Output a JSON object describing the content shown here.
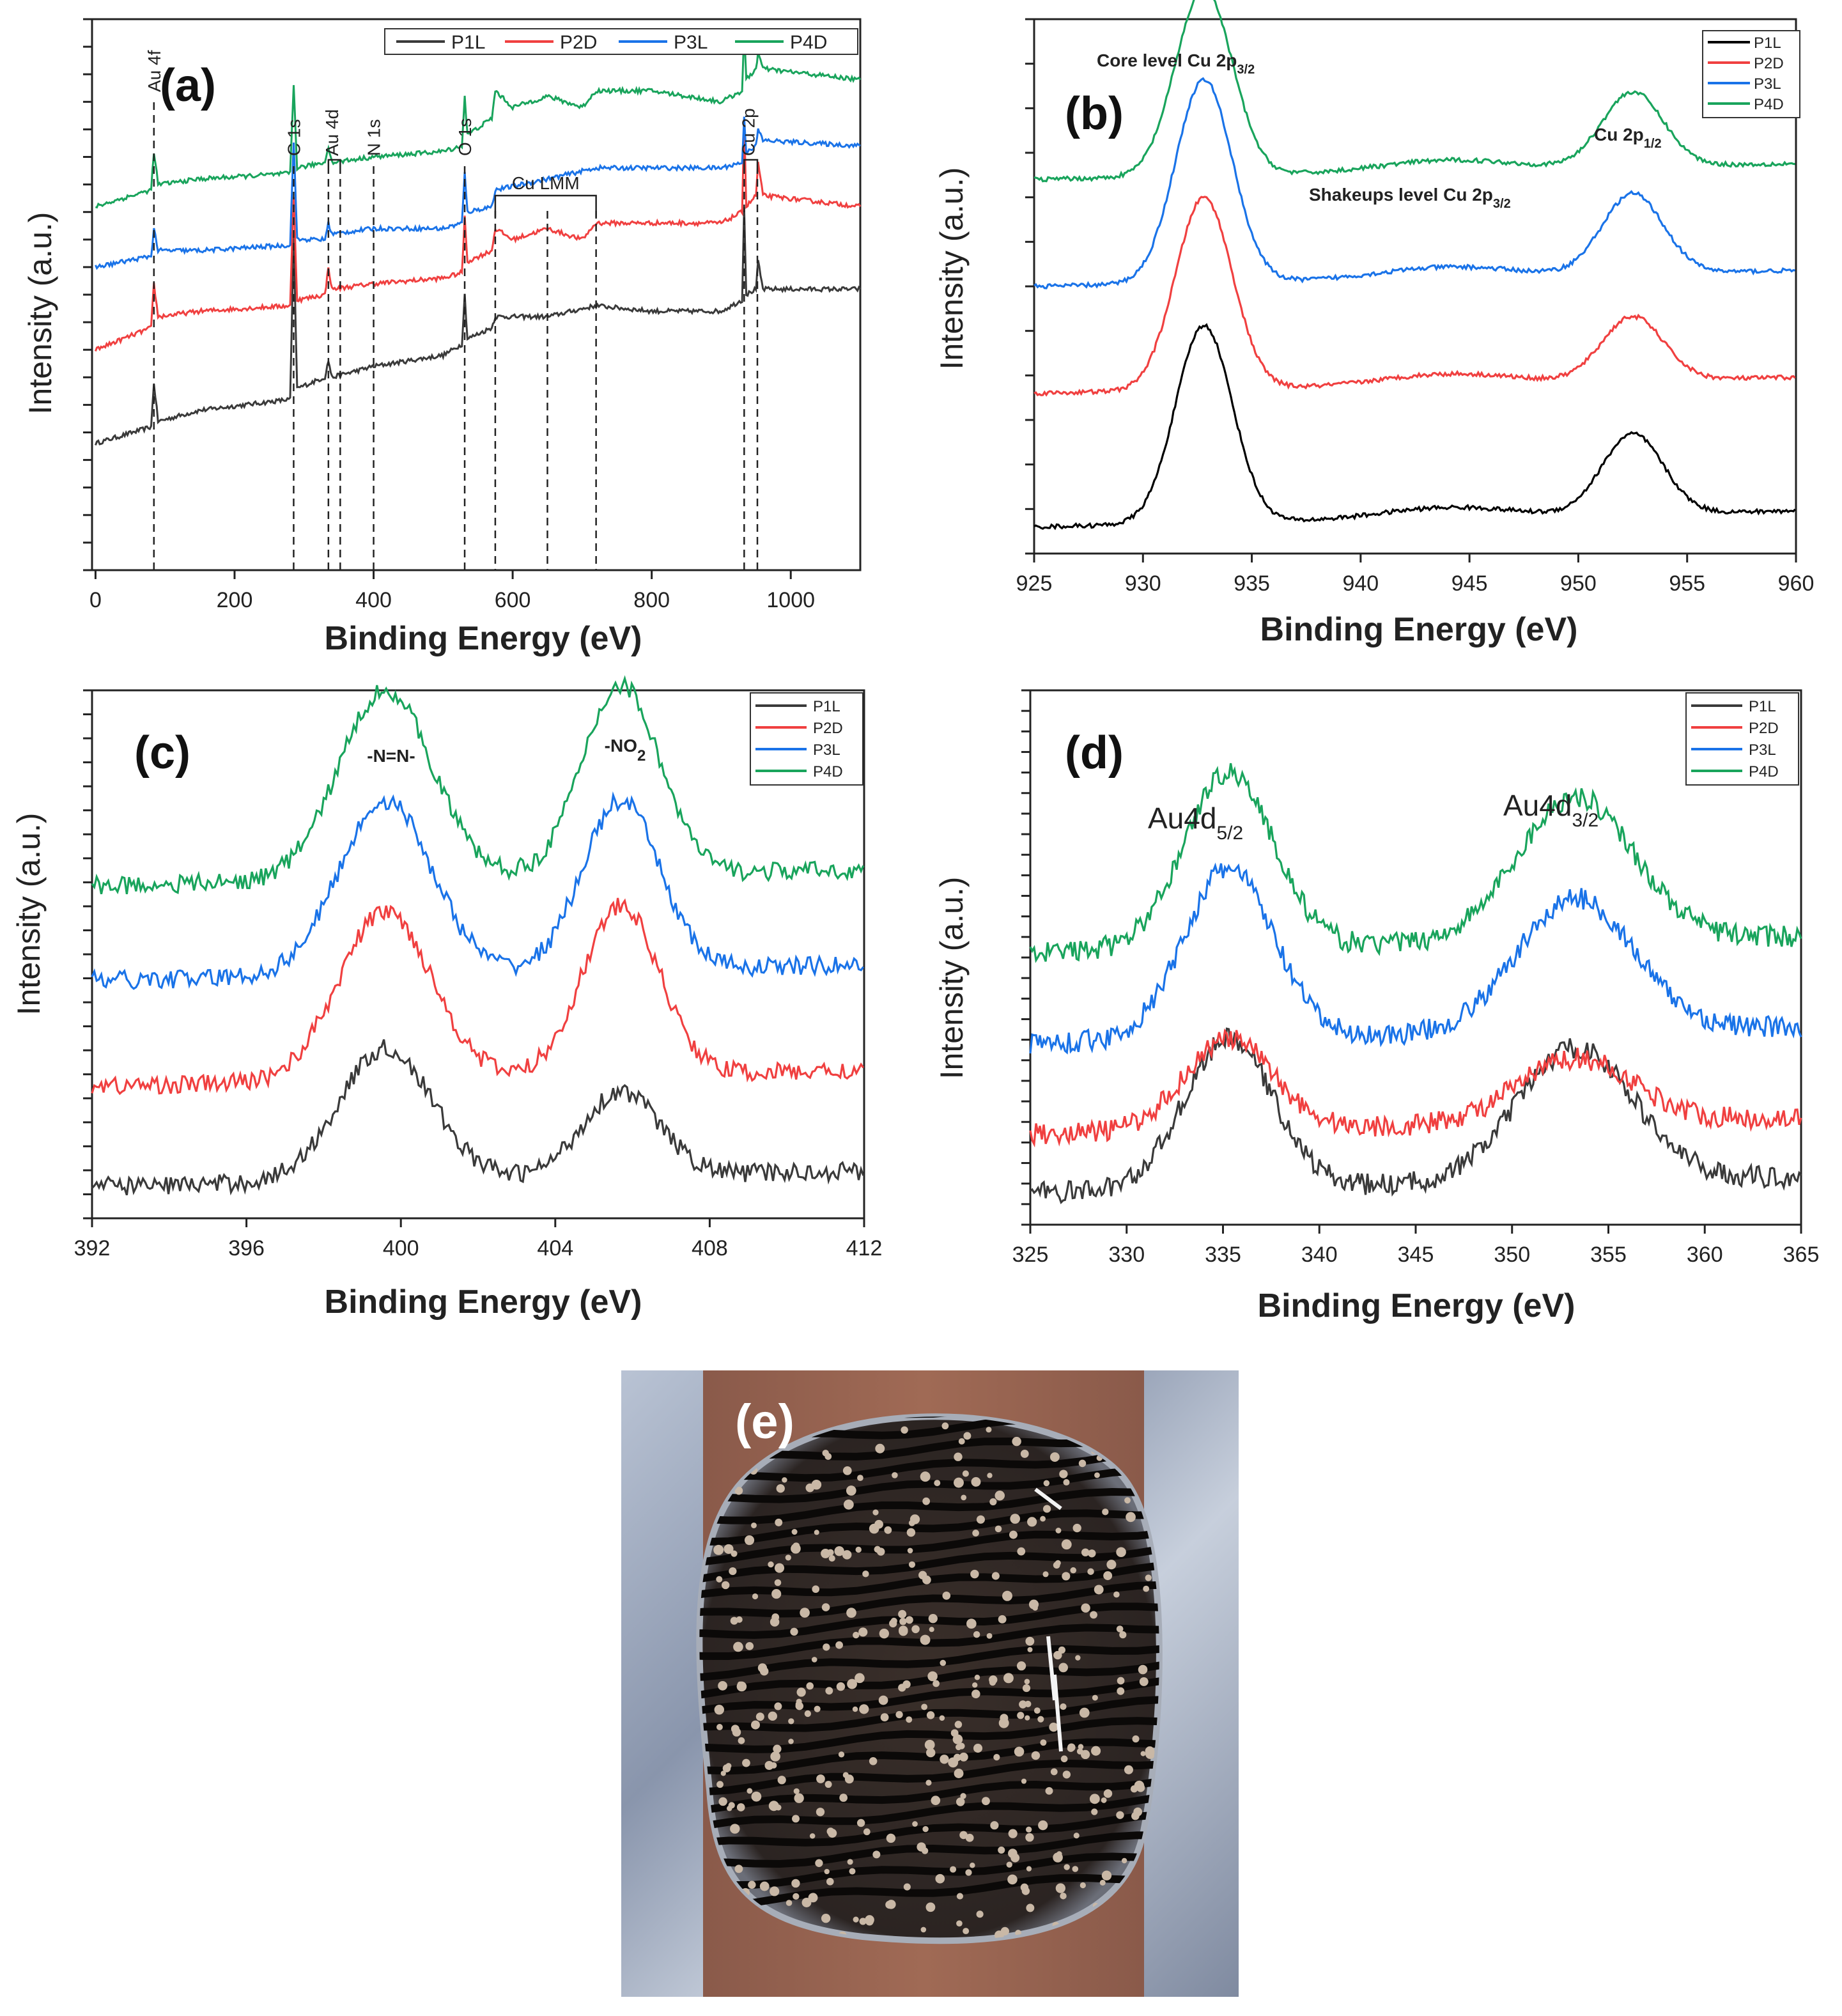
{
  "colors": {
    "P1L": "#3a3a3a",
    "P2D": "#f04040",
    "P3L": "#1a73e8",
    "P4D": "#19a45c",
    "P1L_b": "#000000"
  },
  "chart_data": [
    {
      "panel": "(a)",
      "type": "line",
      "title": "",
      "xlabel": "Binding Energy (eV)",
      "ylabel": "Intensity (a.u.)",
      "xlim": [
        -5,
        1100
      ],
      "xticks": [
        0,
        200,
        400,
        600,
        800,
        1000
      ],
      "legend": [
        "P1L",
        "P2D",
        "P3L",
        "P4D"
      ],
      "legend_placement": "top, horizontal",
      "peak_markers": [
        {
          "label": "Au 4f",
          "x": 84
        },
        {
          "label": "C 1s",
          "x": 285
        },
        {
          "label": "Au 4d",
          "x": 335
        },
        {
          "label": "N 1s",
          "x": 400
        },
        {
          "label": "O 1s",
          "x": 531
        },
        {
          "label": "Cu LMM",
          "x": 570
        },
        {
          "label": "Cu 2p",
          "x": 933
        }
      ],
      "series": [
        {
          "name": "P1L",
          "points": [
            [
              0,
              0.23
            ],
            [
              80,
              0.26
            ],
            [
              84,
              0.34
            ],
            [
              90,
              0.27
            ],
            [
              150,
              0.29
            ],
            [
              280,
              0.31
            ],
            [
              285,
              0.6
            ],
            [
              290,
              0.33
            ],
            [
              330,
              0.35
            ],
            [
              335,
              0.38
            ],
            [
              340,
              0.35
            ],
            [
              400,
              0.37
            ],
            [
              500,
              0.39
            ],
            [
              527,
              0.41
            ],
            [
              531,
              0.5
            ],
            [
              535,
              0.42
            ],
            [
              570,
              0.44
            ],
            [
              575,
              0.46
            ],
            [
              650,
              0.46
            ],
            [
              720,
              0.48
            ],
            [
              800,
              0.47
            ],
            [
              900,
              0.47
            ],
            [
              930,
              0.49
            ],
            [
              933,
              0.66
            ],
            [
              936,
              0.5
            ],
            [
              950,
              0.51
            ],
            [
              953,
              0.56
            ],
            [
              960,
              0.51
            ],
            [
              1100,
              0.51
            ]
          ]
        },
        {
          "name": "P2D",
          "points": [
            [
              0,
              0.4
            ],
            [
              80,
              0.44
            ],
            [
              84,
              0.52
            ],
            [
              90,
              0.46
            ],
            [
              150,
              0.47
            ],
            [
              280,
              0.48
            ],
            [
              285,
              0.68
            ],
            [
              290,
              0.49
            ],
            [
              330,
              0.5
            ],
            [
              335,
              0.55
            ],
            [
              340,
              0.51
            ],
            [
              400,
              0.52
            ],
            [
              500,
              0.53
            ],
            [
              527,
              0.54
            ],
            [
              531,
              0.64
            ],
            [
              535,
              0.56
            ],
            [
              570,
              0.58
            ],
            [
              575,
              0.62
            ],
            [
              600,
              0.6
            ],
            [
              650,
              0.62
            ],
            [
              700,
              0.6
            ],
            [
              720,
              0.63
            ],
            [
              800,
              0.63
            ],
            [
              900,
              0.63
            ],
            [
              930,
              0.65
            ],
            [
              933,
              0.82
            ],
            [
              936,
              0.66
            ],
            [
              950,
              0.68
            ],
            [
              953,
              0.74
            ],
            [
              960,
              0.68
            ],
            [
              1100,
              0.66
            ]
          ]
        },
        {
          "name": "P3L",
          "points": [
            [
              0,
              0.55
            ],
            [
              80,
              0.57
            ],
            [
              84,
              0.62
            ],
            [
              90,
              0.58
            ],
            [
              150,
              0.58
            ],
            [
              280,
              0.59
            ],
            [
              285,
              0.78
            ],
            [
              290,
              0.6
            ],
            [
              330,
              0.6
            ],
            [
              335,
              0.63
            ],
            [
              340,
              0.61
            ],
            [
              400,
              0.62
            ],
            [
              500,
              0.62
            ],
            [
              527,
              0.63
            ],
            [
              531,
              0.72
            ],
            [
              535,
              0.65
            ],
            [
              570,
              0.66
            ],
            [
              575,
              0.69
            ],
            [
              650,
              0.71
            ],
            [
              720,
              0.73
            ],
            [
              800,
              0.73
            ],
            [
              900,
              0.73
            ],
            [
              930,
              0.74
            ],
            [
              933,
              0.82
            ],
            [
              936,
              0.76
            ],
            [
              950,
              0.77
            ],
            [
              953,
              0.8
            ],
            [
              960,
              0.78
            ],
            [
              1100,
              0.77
            ]
          ]
        },
        {
          "name": "P4D",
          "points": [
            [
              0,
              0.66
            ],
            [
              80,
              0.69
            ],
            [
              84,
              0.76
            ],
            [
              90,
              0.7
            ],
            [
              150,
              0.71
            ],
            [
              280,
              0.72
            ],
            [
              285,
              0.88
            ],
            [
              290,
              0.73
            ],
            [
              330,
              0.74
            ],
            [
              335,
              0.77
            ],
            [
              340,
              0.74
            ],
            [
              400,
              0.75
            ],
            [
              500,
              0.76
            ],
            [
              527,
              0.77
            ],
            [
              531,
              0.86
            ],
            [
              535,
              0.79
            ],
            [
              570,
              0.82
            ],
            [
              575,
              0.87
            ],
            [
              600,
              0.84
            ],
            [
              650,
              0.86
            ],
            [
              700,
              0.84
            ],
            [
              720,
              0.87
            ],
            [
              800,
              0.87
            ],
            [
              900,
              0.85
            ],
            [
              930,
              0.87
            ],
            [
              933,
              0.98
            ],
            [
              936,
              0.89
            ],
            [
              950,
              0.91
            ],
            [
              953,
              0.94
            ],
            [
              960,
              0.91
            ],
            [
              1100,
              0.89
            ]
          ]
        }
      ]
    },
    {
      "panel": "(b)",
      "type": "line",
      "xlabel": "Binding Energy (eV)",
      "ylabel": "Intensity (a.u.)",
      "xlim": [
        925,
        960
      ],
      "xticks": [
        925,
        930,
        935,
        940,
        945,
        950,
        955,
        960
      ],
      "legend": [
        "P1L",
        "P2D",
        "P3L",
        "P4D"
      ],
      "legend_placement": "top-right",
      "annotations": [
        "Core level Cu 2p3/2",
        "Shakeups level Cu 2p3/2",
        "Cu 2p1/2"
      ],
      "peaks": [
        {
          "center": 932.8,
          "width": 1.3
        },
        {
          "center": 952.5,
          "width": 1.4
        },
        {
          "center": 944.0,
          "width": 3.0
        }
      ],
      "series": [
        {
          "name": "P1L",
          "offset": 0.05,
          "amps": [
            0.37,
            0.15,
            0.02
          ]
        },
        {
          "name": "P2D",
          "offset": 0.3,
          "amps": [
            0.36,
            0.12,
            0.02
          ]
        },
        {
          "name": "P3L",
          "offset": 0.5,
          "amps": [
            0.38,
            0.15,
            0.02
          ]
        },
        {
          "name": "P4D",
          "offset": 0.7,
          "amps": [
            0.35,
            0.14,
            0.02
          ]
        }
      ]
    },
    {
      "panel": "(c)",
      "type": "line",
      "xlabel": "Binding Energy (eV)",
      "ylabel": "Intensity (a.u.)",
      "xlim": [
        392,
        412
      ],
      "xticks": [
        392,
        396,
        400,
        404,
        408,
        412
      ],
      "legend": [
        "P1L",
        "P2D",
        "P3L",
        "P4D"
      ],
      "legend_placement": "top-right",
      "annotations": [
        "-N=N-",
        "-NO2"
      ],
      "peaks": [
        {
          "center": 399.6,
          "width": 1.2
        },
        {
          "center": 405.7,
          "width": 1.0
        }
      ],
      "series": [
        {
          "name": "P1L",
          "offset": 0.06,
          "amps": [
            0.25,
            0.16
          ]
        },
        {
          "name": "P2D",
          "offset": 0.25,
          "amps": [
            0.32,
            0.32
          ]
        },
        {
          "name": "P3L",
          "offset": 0.45,
          "amps": [
            0.33,
            0.32
          ]
        },
        {
          "name": "P4D",
          "offset": 0.63,
          "amps": [
            0.36,
            0.36
          ]
        }
      ]
    },
    {
      "panel": "(d)",
      "type": "line",
      "xlabel": "Binding Energy (eV)",
      "ylabel": "Intensity (a.u.)",
      "xlim": [
        325,
        365
      ],
      "xticks": [
        325,
        330,
        335,
        340,
        345,
        350,
        355,
        360,
        365
      ],
      "legend": [
        "P1L",
        "P2D",
        "P3L",
        "P4D"
      ],
      "legend_placement": "top-right",
      "annotations": [
        "Au4d5/2",
        "Au4d3/2"
      ],
      "peaks": [
        {
          "center": 335.3,
          "width": 2.3
        },
        {
          "center": 353.3,
          "width": 3.0
        }
      ],
      "series": [
        {
          "name": "P1L",
          "offset": 0.06,
          "amps": [
            0.28,
            0.25
          ]
        },
        {
          "name": "P2D",
          "offset": 0.17,
          "amps": [
            0.17,
            0.12
          ]
        },
        {
          "name": "P3L",
          "offset": 0.34,
          "amps": [
            0.32,
            0.25
          ]
        },
        {
          "name": "P4D",
          "offset": 0.51,
          "amps": [
            0.33,
            0.27
          ]
        }
      ]
    }
  ],
  "panel_e": {
    "label": "(e)",
    "description_icon": "photo-icon"
  },
  "panels": {
    "a": {
      "label": "(a)"
    },
    "b": {
      "label": "(b)",
      "ann_core": "Core level Cu 2p",
      "ann_core_sub": "3/2",
      "ann_shake": "Shakeups level Cu 2p",
      "ann_shake_sub": "3/2",
      "ann_cu": "Cu 2p",
      "ann_cu_sub": "1/2"
    },
    "c": {
      "label": "(c)",
      "ann_nn": "-N=N-",
      "ann_no": "-NO",
      "ann_no_sub": "2"
    },
    "d": {
      "label": "(d)",
      "ann_au1": "Au4d",
      "ann_au1_sub": "5/2",
      "ann_au2": "Au4d",
      "ann_au2_sub": "3/2"
    }
  },
  "axis": {
    "xlabel": "Binding Energy (eV)",
    "ylabel": "Intensity (a.u.)"
  },
  "legend": {
    "entries": [
      "P1L",
      "P2D",
      "P3L",
      "P4D"
    ]
  }
}
